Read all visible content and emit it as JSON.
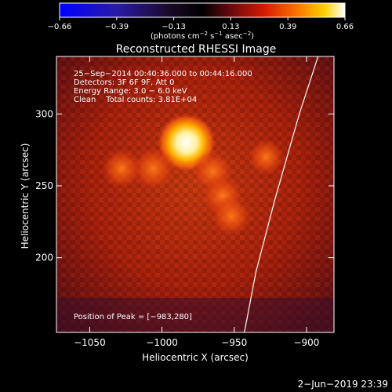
{
  "colorbar": {
    "ticks": [
      "−0.66",
      "−0.39",
      "−0.13",
      "0.13",
      "0.39",
      "0.66"
    ],
    "unit_label": "(photons cm",
    "unit_sup1": "−2",
    "unit_mid": " s",
    "unit_sup2": "−1",
    "unit_end": " asec",
    "unit_sup3": "−2",
    "unit_close": ")"
  },
  "chart_data": {
    "type": "heatmap",
    "title": "Reconstructed RHESSI Image",
    "xlabel": "Heliocentric X (arcsec)",
    "ylabel": "Heliocentric Y (arcsec)",
    "xlim": [
      -1073,
      -881
    ],
    "ylim": [
      148,
      340
    ],
    "x_ticks": [
      {
        "value": -1050,
        "label": "−1050"
      },
      {
        "value": -1000,
        "label": "−1000"
      },
      {
        "value": -950,
        "label": "−950"
      },
      {
        "value": -900,
        "label": "−900"
      }
    ],
    "y_ticks": [
      {
        "value": 200,
        "label": "200"
      },
      {
        "value": 250,
        "label": "250"
      },
      {
        "value": 300,
        "label": "300"
      }
    ],
    "colorbar_range": [
      -0.66,
      0.66
    ],
    "peak": [
      -983,
      280
    ],
    "sources": [
      {
        "x": -983,
        "y": 280,
        "intensity": 0.66
      },
      {
        "x": -1006,
        "y": 262,
        "intensity": 0.4
      },
      {
        "x": -1028,
        "y": 262,
        "intensity": 0.32
      },
      {
        "x": -965,
        "y": 260,
        "intensity": 0.33
      },
      {
        "x": -958,
        "y": 243,
        "intensity": 0.35
      },
      {
        "x": -952,
        "y": 229,
        "intensity": 0.3
      },
      {
        "x": -928,
        "y": 270,
        "intensity": 0.2
      }
    ],
    "limb_curve": [
      [
        -943,
        148
      ],
      [
        -935,
        190
      ],
      [
        -922,
        240
      ],
      [
        -905,
        300
      ],
      [
        -892,
        340
      ]
    ],
    "annotations": [
      "25−Sep−2014 00:40:36.000 to 00:44:16.000",
      "Detectors: 3F 6F 9F, Att 0",
      "Energy Range: 3.0 − 6.0 keV",
      "Clean    Total counts: 3.81E+04"
    ],
    "peak_text": "Position of Peak = [−983,280]"
  },
  "footer": {
    "date": "2−Jun−2019 23:39"
  }
}
